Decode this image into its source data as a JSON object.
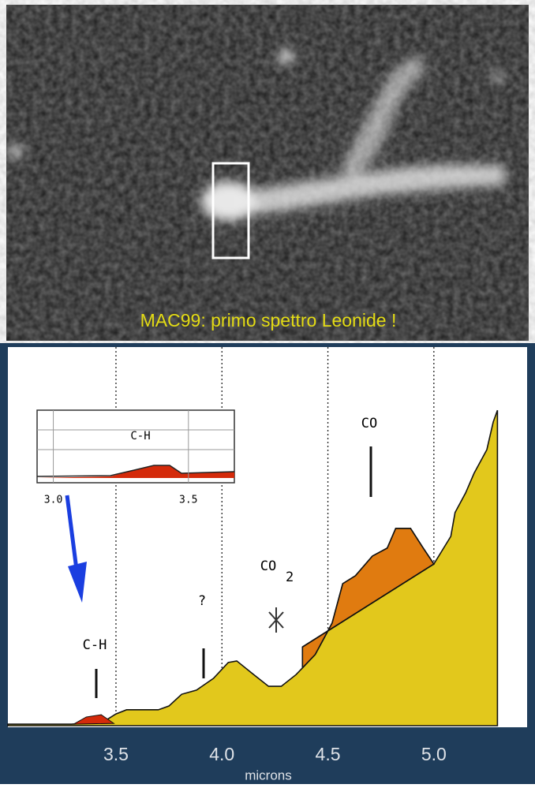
{
  "photo": {
    "caption": "MAC99: primo spettro Leonide !"
  },
  "chart_data": {
    "type": "area",
    "x_label": "microns",
    "color": "#e2c81c",
    "xlim": [
      2.99,
      5.44
    ],
    "ylim": [
      0,
      100
    ],
    "xticks": [
      3.5,
      {
        "value": 4.0,
        "label": "4.0"
      },
      4.5,
      {
        "value": 5.0,
        "label": "5.0"
      }
    ],
    "grid": true,
    "x": [
      2.99,
      3.29,
      3.44,
      3.5,
      3.55,
      3.7,
      3.75,
      3.81,
      3.88,
      3.96,
      4.03,
      4.07,
      4.15,
      4.22,
      4.28,
      4.35,
      4.44,
      4.52,
      4.57,
      4.63,
      4.71,
      4.78,
      4.82,
      4.89,
      4.95,
      5.0,
      5.08,
      5.1,
      5.15,
      5.19,
      5.25,
      5.28,
      5.3
    ],
    "values": [
      0.4,
      0.4,
      1.0,
      3.1,
      4.2,
      4.2,
      5.2,
      8.3,
      9.4,
      12.5,
      16.7,
      17.1,
      13.5,
      10.4,
      10.4,
      13.5,
      18.8,
      27.1,
      37.5,
      39.6,
      44.8,
      46.9,
      52.1,
      52.1,
      46.9,
      42.7,
      50.0,
      56.3,
      61.5,
      66.7,
      72.9,
      80.2,
      83.3
    ],
    "continuum": {
      "x": [
        4.38,
        5.0
      ],
      "values": [
        20.8,
        42.7
      ],
      "color": "#e07b10"
    },
    "emission": {
      "x": [
        3.3,
        3.36,
        3.43,
        3.49
      ],
      "values": [
        0.4,
        2.3,
        2.9,
        0.6
      ],
      "color": "#d42a0a"
    },
    "annotations": [
      {
        "text": "C-H"
      },
      {
        "text": "?"
      },
      {
        "text": "CO",
        "subscript": "2"
      },
      {
        "text": "CO"
      }
    ],
    "inset": {
      "title": "C-H",
      "xlim": [
        2.94,
        3.67
      ],
      "xticks": [
        {
          "value": 3.0,
          "label": "3.0"
        },
        {
          "value": 3.5,
          "label": "3.5"
        }
      ]
    }
  }
}
